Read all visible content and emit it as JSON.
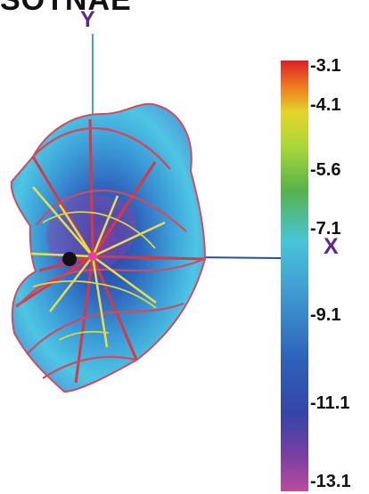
{
  "title_partial": "SOTNAE",
  "axes": {
    "x_label": "X",
    "y_label": "Y"
  },
  "colorbar": {
    "ticks": [
      "-3.1",
      "-4.1",
      "-5.6",
      "-7.1",
      "-9.1",
      "-11.1",
      "-13.1"
    ],
    "colors": [
      "#d92025",
      "#f07a20",
      "#e5d42b",
      "#a9d73a",
      "#58b24b",
      "#48c5d8",
      "#3f96d1",
      "#2e63b9",
      "#3545a8",
      "#7a3fa0",
      "#ba4ca0"
    ]
  },
  "pattern": {
    "fill_colors": [
      "#46c6e1",
      "#2f6fc3",
      "#2a55b3",
      "#7d3b98",
      "#a34ea8"
    ],
    "mesh_colors": [
      "#d73a45",
      "#e0de45",
      "#cfd84a"
    ]
  }
}
